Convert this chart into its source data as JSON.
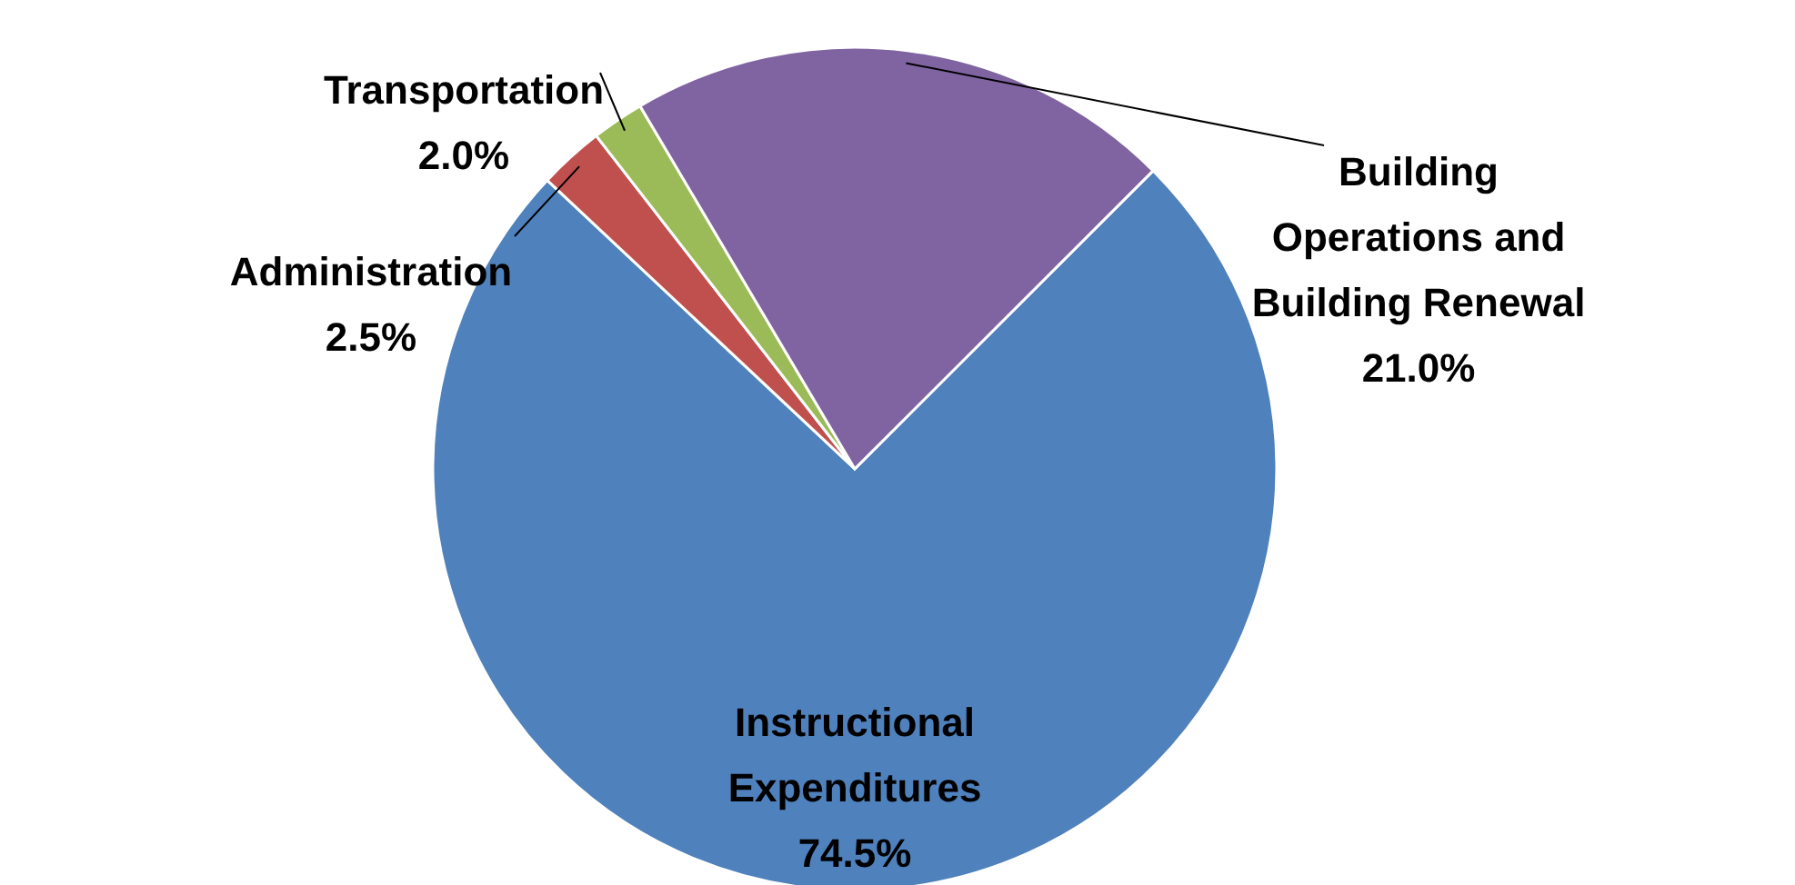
{
  "chart_data": {
    "type": "pie",
    "categories": [
      "Instructional Expenditures",
      "Administration",
      "Transportation",
      "Building Operations and Building Renewal"
    ],
    "values": [
      74.5,
      2.5,
      2.0,
      21.0
    ],
    "colors": [
      "#4f81bd",
      "#c0504d",
      "#9bbb59",
      "#8064a2"
    ],
    "value_labels": [
      "74.5%",
      "2.5%",
      "2.0%",
      "21.0%"
    ]
  }
}
